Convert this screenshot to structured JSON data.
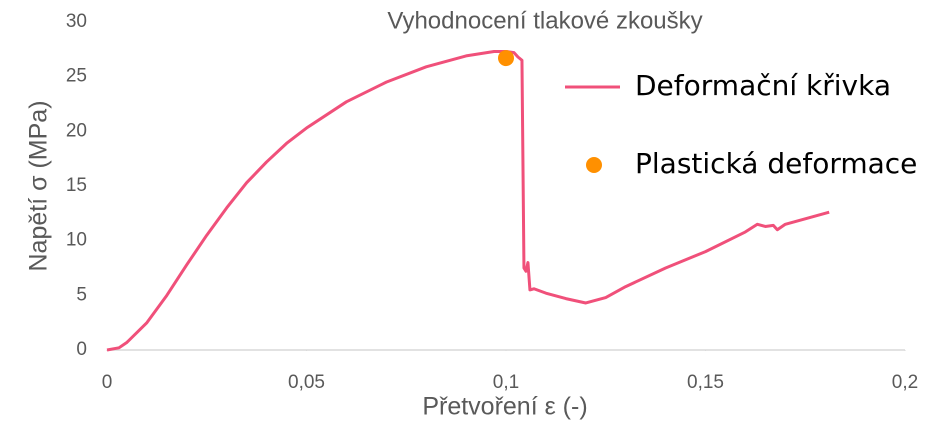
{
  "chart_data": {
    "type": "line",
    "title": "Vyhodnocení tlakové zkoušky",
    "xlabel": "Přetvoření ε (-)",
    "ylabel": "Napětí σ (MPa)",
    "xlim": [
      0,
      0.2
    ],
    "ylim": [
      0,
      30
    ],
    "xticks": [
      {
        "value": 0,
        "label": "0"
      },
      {
        "value": 0.05,
        "label": "0,05"
      },
      {
        "value": 0.1,
        "label": "0,1"
      },
      {
        "value": 0.15,
        "label": "0,15"
      },
      {
        "value": 0.2,
        "label": "0,2"
      }
    ],
    "yticks": [
      0,
      5,
      10,
      15,
      20,
      25,
      30
    ],
    "grid": false,
    "legend": "right",
    "series": [
      {
        "name": "Deformační křivka",
        "type": "line",
        "color": "#f0507a",
        "x": [
          0,
          0.003,
          0.005,
          0.01,
          0.015,
          0.02,
          0.025,
          0.03,
          0.035,
          0.04,
          0.045,
          0.05,
          0.06,
          0.07,
          0.08,
          0.09,
          0.097,
          0.1,
          0.102,
          0.103,
          0.104,
          0.1045,
          0.105,
          0.1055,
          0.106,
          0.107,
          0.11,
          0.115,
          0.12,
          0.125,
          0.13,
          0.14,
          0.15,
          0.16,
          0.163,
          0.165,
          0.167,
          0.168,
          0.17,
          0.175,
          0.181
        ],
        "values": [
          0,
          0.2,
          0.7,
          2.5,
          5,
          7.8,
          10.5,
          13,
          15.3,
          17.2,
          18.9,
          20.3,
          22.7,
          24.5,
          25.9,
          26.9,
          27.3,
          27.3,
          27.2,
          26.8,
          26.5,
          7.5,
          7.2,
          8,
          5.5,
          5.6,
          5.2,
          4.7,
          4.3,
          4.8,
          5.8,
          7.5,
          9,
          10.8,
          11.5,
          11.3,
          11.4,
          11,
          11.5,
          12,
          12.6
        ]
      },
      {
        "name": "Plastická deformace",
        "type": "scatter",
        "color": "#ff9000",
        "x": [
          0.1
        ],
        "values": [
          26.7
        ]
      }
    ]
  }
}
